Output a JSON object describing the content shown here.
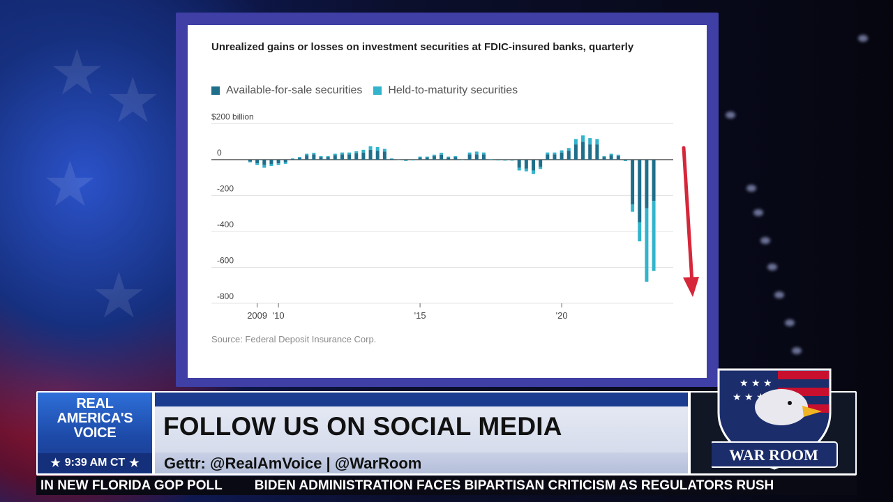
{
  "chart_data": {
    "type": "bar",
    "title": "Unrealized gains or losses on investment securities at FDIC-insured banks, quarterly",
    "source": "Source: Federal Deposit Insurance Corp.",
    "y_unit_label": "$200 billion",
    "yticks": [
      "$200 billion",
      "0",
      "-200",
      "-400",
      "-600",
      "-800"
    ],
    "ytick_values": [
      200,
      0,
      -200,
      -400,
      -600,
      -800
    ],
    "ylim": [
      -800,
      200
    ],
    "xtick_labels": [
      "2009",
      "'10",
      "'15",
      "'20"
    ],
    "xtick_quarters": [
      1,
      4,
      24,
      44
    ],
    "legend_position": "top-left",
    "grid": "horizontal",
    "start_quarter": "2008 Q4",
    "series": [
      {
        "name": "Available-for-sale securities",
        "color": "#1f6f8b",
        "values": [
          -10,
          -20,
          -30,
          -25,
          -20,
          -15,
          5,
          10,
          25,
          30,
          15,
          15,
          25,
          30,
          30,
          35,
          40,
          55,
          50,
          45,
          5,
          0,
          -5,
          -2,
          12,
          12,
          20,
          28,
          12,
          15,
          0,
          30,
          30,
          30,
          2,
          -2,
          -3,
          -3,
          -45,
          -50,
          -60,
          -40,
          30,
          30,
          40,
          50,
          85,
          100,
          85,
          85,
          15,
          25,
          20,
          -5,
          -250,
          -350,
          -270,
          -230
        ]
      },
      {
        "name": "Held-to-maturity securities",
        "color": "#33b4cc",
        "values": [
          -5,
          -10,
          -15,
          -10,
          -10,
          -8,
          2,
          5,
          8,
          8,
          5,
          5,
          8,
          10,
          10,
          12,
          15,
          20,
          20,
          15,
          2,
          0,
          -2,
          0,
          5,
          5,
          8,
          10,
          5,
          5,
          0,
          10,
          15,
          10,
          1,
          -1,
          -1,
          -1,
          -15,
          -15,
          -20,
          -12,
          10,
          10,
          12,
          15,
          30,
          35,
          35,
          30,
          5,
          8,
          8,
          -3,
          -40,
          -105,
          -410,
          -390
        ]
      }
    ]
  },
  "arrow_color": "#d6263a",
  "lower_third": {
    "channel_line1": "REAL",
    "channel_line2": "AMERICA'S",
    "channel_line3": "VOICE",
    "time": "9:39 AM CT",
    "headline": "FOLLOW US ON SOCIAL MEDIA",
    "social": "Gettr: @RealAmVoice | @WarRoom",
    "show_logo": "WAR ROOM"
  },
  "ticker": {
    "item1": "IN NEW FLORIDA GOP POLL",
    "item2": "BIDEN ADMINISTRATION FACES BIPARTISAN CRITICISM AS REGULATORS RUSH"
  }
}
